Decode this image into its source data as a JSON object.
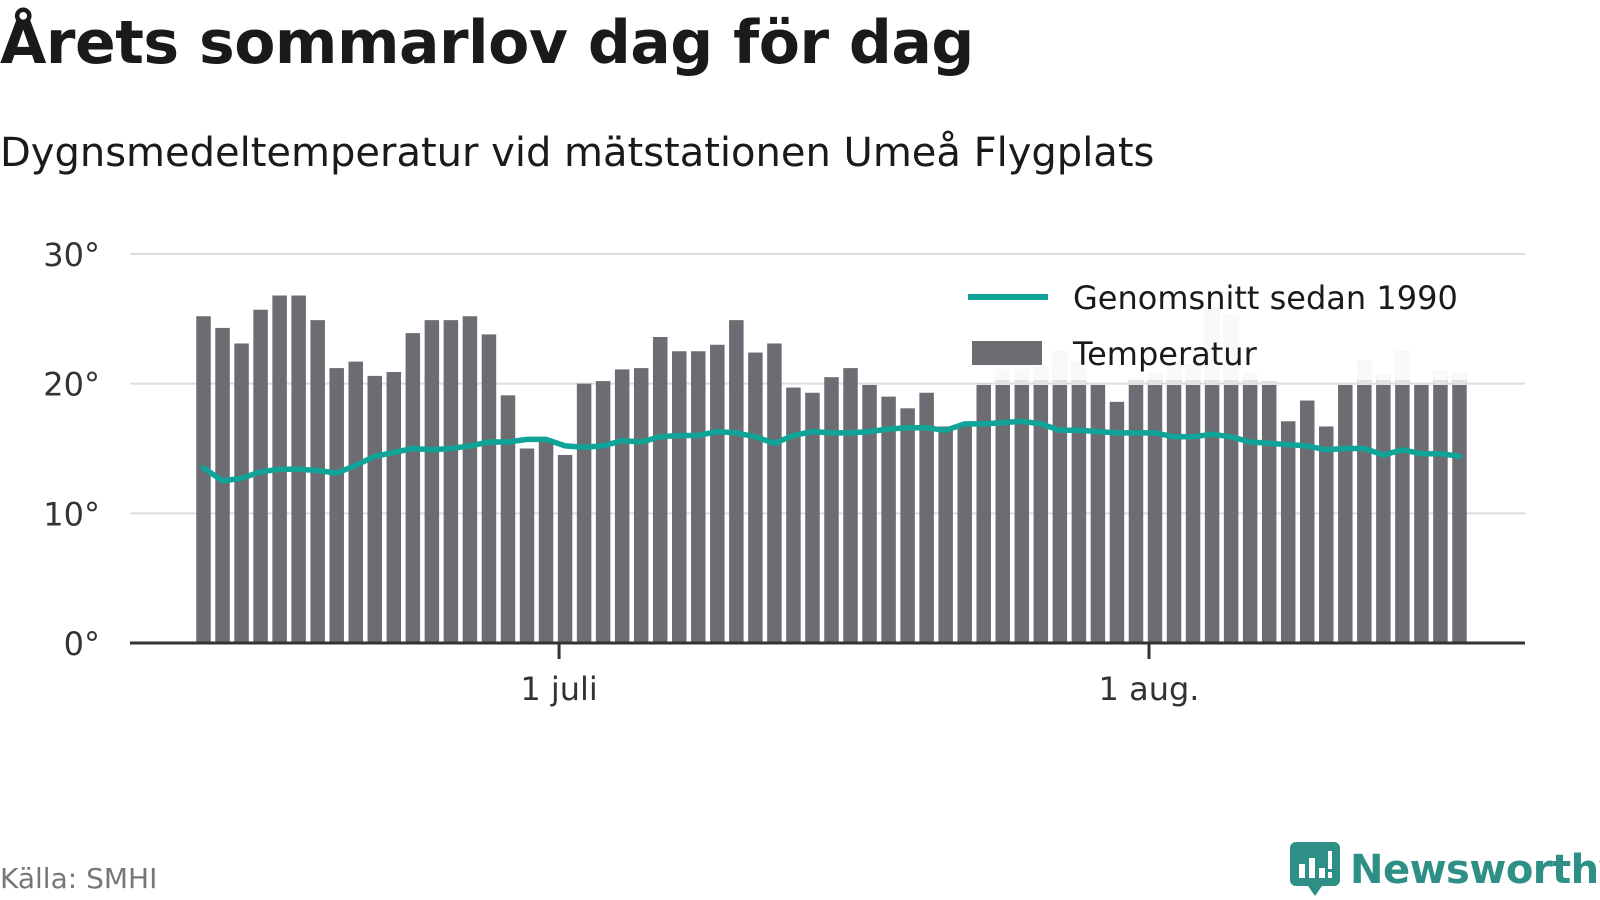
{
  "title": "Årets sommarlov dag för dag",
  "subtitle": "Dygnsmedeltemperatur vid mätstationen Umeå Flygplats",
  "source": "Källa: SMHI",
  "brand": {
    "name": "Newsworthy",
    "color": "#2e8f87",
    "icon": "newsworthy-bar-chart-logo-icon"
  },
  "colors": {
    "bars": "#6d6c72",
    "bars_faded": "#e3e3e3",
    "average_line": "#0fa497",
    "grid": "#dddddd",
    "axis": "#333333"
  },
  "chart_data": {
    "type": "bar",
    "x_axis": {
      "start_date": "2018-06-12",
      "tick_labels": [
        "1 juli",
        "1 aug."
      ]
    },
    "y_axis": {
      "ylim": [
        0,
        30
      ],
      "ticks": [
        0,
        10,
        20,
        30
      ],
      "tick_labels": [
        "0°",
        "10°",
        "20°",
        "30°"
      ]
    },
    "grid": true,
    "legend": {
      "position": "top-right",
      "entries": [
        "Genomsnitt sedan 1990",
        "Temperatur"
      ]
    },
    "series": [
      {
        "name": "Temperatur",
        "kind": "bar",
        "values": [
          25.2,
          24.3,
          23.1,
          25.7,
          26.8,
          26.8,
          24.9,
          21.2,
          21.7,
          20.6,
          20.9,
          23.9,
          24.9,
          24.9,
          25.2,
          23.8,
          19.1,
          15.0,
          15.5,
          14.5,
          20.0,
          20.2,
          21.1,
          21.2,
          23.6,
          22.5,
          22.5,
          23.0,
          24.9,
          22.4,
          23.1,
          19.7,
          19.3,
          20.5,
          21.2,
          19.9,
          19.0,
          18.1,
          19.3,
          16.7,
          16.8,
          20.0,
          21.1,
          21.1,
          21.3,
          22.5,
          21.7,
          19.9,
          18.6,
          20.4,
          20.8,
          21.7,
          21.5,
          25.9,
          25.3,
          20.8,
          20.2,
          17.1,
          18.7,
          16.7,
          19.9,
          21.8,
          20.7,
          22.5,
          19.9,
          21.0,
          20.8
        ]
      },
      {
        "name": "Genomsnitt sedan 1990",
        "kind": "line",
        "values": [
          13.5,
          12.5,
          12.7,
          13.2,
          13.4,
          13.4,
          13.3,
          13.1,
          13.7,
          14.4,
          14.7,
          15.0,
          14.9,
          15.0,
          15.2,
          15.5,
          15.5,
          15.7,
          15.7,
          15.2,
          15.1,
          15.2,
          15.6,
          15.5,
          15.9,
          16.0,
          16.0,
          16.3,
          16.2,
          15.9,
          15.4,
          16.0,
          16.3,
          16.2,
          16.2,
          16.3,
          16.5,
          16.6,
          16.6,
          16.4,
          16.9,
          16.9,
          17.0,
          17.1,
          16.9,
          16.4,
          16.4,
          16.3,
          16.2,
          16.2,
          16.2,
          15.9,
          15.9,
          16.1,
          15.9,
          15.5,
          15.4,
          15.3,
          15.2,
          14.9,
          15.0,
          15.0,
          14.5,
          14.9,
          14.6,
          14.6,
          14.4
        ]
      }
    ]
  }
}
